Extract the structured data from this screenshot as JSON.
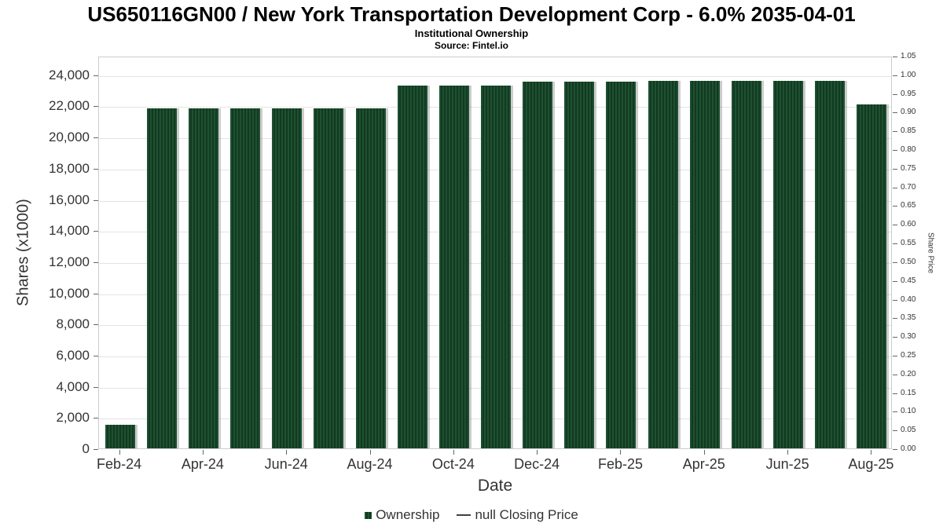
{
  "header": {
    "title": "US650116GN00 / New York Transportation Development Corp - 6.0% 2035-04-01",
    "subtitle": "Institutional Ownership",
    "source": "Source: Fintel.io"
  },
  "chart_data": {
    "type": "bar",
    "title": "US650116GN00 / New York Transportation Development Corp - 6.0% 2035-04-01",
    "subtitle": "Institutional Ownership",
    "source": "Source: Fintel.io",
    "xlabel": "Date",
    "ylabel": "Shares (x1000)",
    "y2label": "Share Price",
    "categories": [
      "Feb-24",
      "Mar-24",
      "Apr-24",
      "May-24",
      "Jun-24",
      "Jul-24",
      "Aug-24",
      "Sep-24",
      "Oct-24",
      "Nov-24",
      "Dec-24",
      "Jan-25",
      "Feb-25",
      "Mar-25",
      "Apr-25",
      "May-25",
      "Jun-25",
      "Jul-25",
      "Aug-25"
    ],
    "values": [
      1500,
      21800,
      21800,
      21800,
      21800,
      21800,
      21800,
      23300,
      23300,
      23300,
      23550,
      23550,
      23550,
      23600,
      23600,
      23600,
      23600,
      23600,
      22100
    ],
    "series_name": "Ownership",
    "ylim": [
      0,
      25200
    ],
    "y_ticks": [
      0,
      2000,
      4000,
      6000,
      8000,
      10000,
      12000,
      14000,
      16000,
      18000,
      20000,
      22000,
      24000
    ],
    "y2lim": [
      0,
      1.05
    ],
    "y2_tick_step": 0.05,
    "xtick_indices": [
      0,
      2,
      4,
      6,
      8,
      10,
      12,
      14,
      16,
      18
    ],
    "xtick_labels": [
      "Feb-24",
      "Apr-24",
      "Jun-24",
      "Aug-24",
      "Oct-24",
      "Dec-24",
      "Feb-25",
      "Apr-25",
      "Jun-25",
      "Aug-25"
    ],
    "grid": true,
    "legend_position": "bottom",
    "bar_color": "#1a4a2a",
    "bar_stripe_color": "#123a20",
    "legend": [
      {
        "marker": "square",
        "label": "Ownership",
        "color": "#1a4a2a"
      },
      {
        "marker": "line",
        "label": "null Closing Price",
        "color": "#404040"
      }
    ]
  }
}
